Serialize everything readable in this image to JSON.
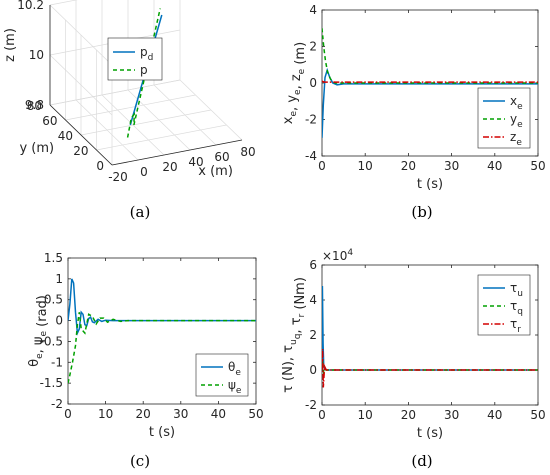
{
  "colors": {
    "blue": "#0072BD",
    "green": "#00A000",
    "red": "#D40000"
  },
  "panels": {
    "a": {
      "label": "(a)"
    },
    "b": {
      "label": "(b)"
    },
    "c": {
      "label": "(c)"
    },
    "d": {
      "label": "(d)"
    }
  },
  "chart_data": [
    {
      "id": "a",
      "type": "line3d",
      "xlabel": "x (m)",
      "ylabel": "y (m)",
      "zlabel": "z (m)",
      "xticks": [
        "-20",
        "0",
        "20",
        "40",
        "60",
        "80"
      ],
      "yticks": [
        "0",
        "20",
        "40",
        "60",
        "80"
      ],
      "zticks": [
        "9.8",
        "10",
        "10.2"
      ],
      "xlim": [
        -20,
        80
      ],
      "ylim": [
        0,
        80
      ],
      "zlim": [
        9.8,
        10.2
      ],
      "grid": true,
      "legend_position": "top-left",
      "series": [
        {
          "name": "p",
          "sub": "d",
          "color": "blue",
          "dash": "solid",
          "points": [
            [
              0,
              10,
              9.91
            ],
            [
              60,
              70,
              10.11
            ]
          ]
        },
        {
          "name": "p",
          "sub": "",
          "color": "green",
          "dash": "dashed",
          "points": [
            [
              -5,
              5,
              9.88
            ],
            [
              2,
              12,
              9.93
            ],
            [
              3,
              10,
              9.95
            ],
            [
              4,
              12,
              9.9
            ],
            [
              60,
              72,
              10.13
            ]
          ]
        }
      ]
    },
    {
      "id": "b",
      "type": "line",
      "xlabel": "t (s)",
      "ylabel": [
        [
          "x",
          "e"
        ],
        [
          ", y",
          "e"
        ],
        [
          ", z",
          "e"
        ],
        [
          " (m)",
          ""
        ]
      ],
      "xlim": [
        0,
        50
      ],
      "ylim": [
        -4,
        4
      ],
      "xticks": [
        0,
        10,
        20,
        30,
        40,
        50
      ],
      "yticks": [
        -4,
        -2,
        0,
        2,
        4
      ],
      "legend_position": "bottom-right",
      "series": [
        {
          "name": "x",
          "sub": "e",
          "color": "blue",
          "dash": "solid",
          "points": [
            [
              0,
              -3
            ],
            [
              0.3,
              -1.2
            ],
            [
              0.7,
              0.3
            ],
            [
              1.2,
              0.7
            ],
            [
              1.8,
              0.3
            ],
            [
              2.5,
              0
            ],
            [
              3.5,
              -0.1
            ],
            [
              5,
              -0.05
            ],
            [
              50,
              -0.05
            ]
          ]
        },
        {
          "name": "y",
          "sub": "e",
          "color": "green",
          "dash": "dashed",
          "points": [
            [
              0,
              3
            ],
            [
              0.4,
              2.0
            ],
            [
              0.8,
              1.2
            ],
            [
              1.3,
              0.6
            ],
            [
              2,
              0.2
            ],
            [
              3,
              0
            ],
            [
              50,
              0
            ]
          ]
        },
        {
          "name": "z",
          "sub": "e",
          "color": "red",
          "dash": "dashdot",
          "points": [
            [
              0,
              0.1
            ],
            [
              0.5,
              0.05
            ],
            [
              1,
              0.05
            ],
            [
              50,
              0.05
            ]
          ]
        }
      ]
    },
    {
      "id": "c",
      "type": "line",
      "xlabel": "t (s)",
      "ylabel": [
        [
          "θ",
          "e"
        ],
        [
          ", ψ",
          "e"
        ],
        [
          " (rad)",
          ""
        ]
      ],
      "xlim": [
        0,
        50
      ],
      "ylim": [
        -2,
        1.5
      ],
      "xticks": [
        0,
        10,
        20,
        30,
        40,
        50
      ],
      "yticks": [
        -2,
        -1.5,
        -1,
        -0.5,
        0,
        0.5,
        1,
        1.5
      ],
      "legend_position": "bottom-right",
      "series": [
        {
          "name": "θ",
          "sub": "e",
          "color": "blue",
          "dash": "solid",
          "points": [
            [
              0,
              0
            ],
            [
              0.5,
              0.4
            ],
            [
              1,
              1.0
            ],
            [
              1.5,
              0.9
            ],
            [
              2,
              0.2
            ],
            [
              2.5,
              -0.3
            ],
            [
              3,
              -0.2
            ],
            [
              3.5,
              0.2
            ],
            [
              4,
              0.15
            ],
            [
              4.5,
              -0.1
            ],
            [
              5,
              -0.12
            ],
            [
              5.5,
              0.05
            ],
            [
              6,
              0.08
            ],
            [
              6.5,
              -0.03
            ],
            [
              7,
              -0.05
            ],
            [
              8,
              0.03
            ],
            [
              9,
              -0.02
            ],
            [
              10,
              0.01
            ],
            [
              12,
              0
            ],
            [
              50,
              0
            ]
          ]
        },
        {
          "name": "ψ",
          "sub": "e",
          "color": "green",
          "dash": "dashed",
          "points": [
            [
              0,
              -1.5
            ],
            [
              0.5,
              -1.3
            ],
            [
              1.2,
              -1.0
            ],
            [
              2,
              -0.6
            ],
            [
              2.5,
              -0.1
            ],
            [
              3,
              0.2
            ],
            [
              3.5,
              -0.2
            ],
            [
              4.5,
              -0.3
            ],
            [
              5.5,
              0.15
            ],
            [
              6.5,
              0.1
            ],
            [
              7.5,
              -0.08
            ],
            [
              8.5,
              0.06
            ],
            [
              9.5,
              0.06
            ],
            [
              10.5,
              -0.04
            ],
            [
              12,
              0.03
            ],
            [
              14,
              -0.02
            ],
            [
              16,
              0
            ],
            [
              50,
              0
            ]
          ]
        }
      ]
    },
    {
      "id": "d",
      "type": "line",
      "xlabel": "t (s)",
      "ylabel": [
        [
          "τ",
          ""
        ],
        [
          " (N), τ",
          "u"
        ],
        [
          "",
          "q"
        ],
        [
          ", τ",
          ""
        ],
        [
          "",
          "r"
        ],
        [
          " (Nm)",
          ""
        ]
      ],
      "multiplier": "×10",
      "multiplier_exp": "4",
      "xlim": [
        0,
        50
      ],
      "ylim": [
        -2,
        6
      ],
      "xticks": [
        0,
        10,
        20,
        30,
        40,
        50
      ],
      "yticks": [
        -2,
        0,
        2,
        4,
        6
      ],
      "legend_position": "top-right",
      "series": [
        {
          "name": "τ",
          "sub": "u",
          "color": "blue",
          "dash": "solid",
          "points": [
            [
              0,
              0
            ],
            [
              0.1,
              4.8
            ],
            [
              0.25,
              1.5
            ],
            [
              0.4,
              0.3
            ],
            [
              0.6,
              0.1
            ],
            [
              1,
              0
            ],
            [
              50,
              0
            ]
          ]
        },
        {
          "name": "τ",
          "sub": "q",
          "color": "green",
          "dash": "dashed",
          "points": [
            [
              0,
              0
            ],
            [
              0.15,
              0.6
            ],
            [
              0.4,
              -0.2
            ],
            [
              0.8,
              0
            ],
            [
              50,
              0
            ]
          ]
        },
        {
          "name": "τ",
          "sub": "r",
          "color": "red",
          "dash": "dashdot",
          "points": [
            [
              0,
              0
            ],
            [
              0.15,
              1.2
            ],
            [
              0.3,
              -1.0
            ],
            [
              0.6,
              0.2
            ],
            [
              1,
              0
            ],
            [
              50,
              0
            ]
          ]
        }
      ]
    }
  ]
}
